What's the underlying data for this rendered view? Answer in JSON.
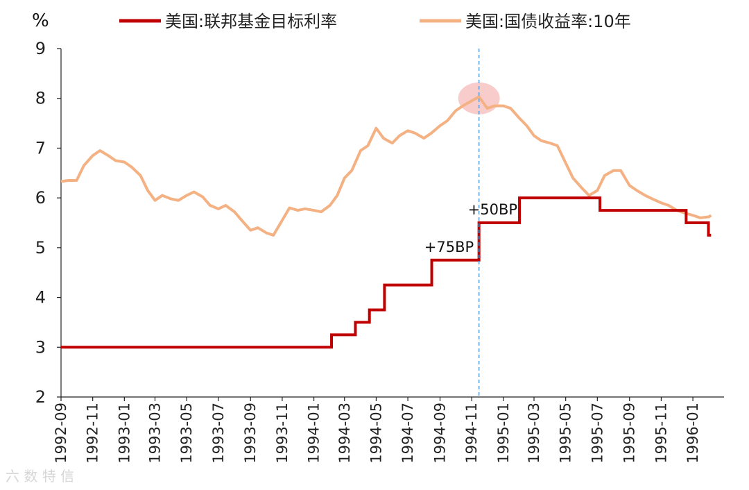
{
  "chart_data": {
    "type": "line",
    "title": "",
    "ylabel": "%",
    "xlabel": "",
    "ylim": [
      2,
      9
    ],
    "yticks": [
      "9",
      "8",
      "7",
      "6",
      "5",
      "4",
      "3",
      "2"
    ],
    "ytick_values": [
      9,
      8,
      7,
      6,
      5,
      4,
      3,
      2
    ],
    "xlim": [
      "1992-09",
      "1996-03"
    ],
    "xticks": [
      "1992-09",
      "1992-11",
      "1993-01",
      "1993-03",
      "1993-05",
      "1993-07",
      "1993-09",
      "1993-11",
      "1994-01",
      "1994-03",
      "1994-05",
      "1994-07",
      "1994-09",
      "1994-11",
      "1995-01",
      "1995-03",
      "1995-05",
      "1995-07",
      "1995-09",
      "1995-11",
      "1996-01"
    ],
    "legend": [
      "美国:联邦基金目标利率",
      "美国:国债收益率:10年"
    ],
    "series": [
      {
        "name": "美国:联邦基金目标利率",
        "color": "#C00000",
        "style": "step",
        "points": [
          [
            "1992-09-01",
            3.0
          ],
          [
            "1994-02-04",
            3.25
          ],
          [
            "1994-03-22",
            3.5
          ],
          [
            "1994-04-18",
            3.75
          ],
          [
            "1994-05-17",
            4.25
          ],
          [
            "1994-08-16",
            4.75
          ],
          [
            "1994-11-15",
            5.5
          ],
          [
            "1995-02-01",
            6.0
          ],
          [
            "1995-07-06",
            5.75
          ],
          [
            "1995-12-19",
            5.5
          ],
          [
            "1996-01-31",
            5.25
          ],
          [
            "1996-02-05",
            5.25
          ]
        ]
      },
      {
        "name": "美国:国债收益率:10年",
        "color": "#F4B183",
        "style": "line",
        "points": [
          [
            "1992-09-01",
            6.33
          ],
          [
            "1992-09-15",
            6.35
          ],
          [
            "1992-10-01",
            6.35
          ],
          [
            "1992-10-15",
            6.65
          ],
          [
            "1992-11-01",
            6.85
          ],
          [
            "1992-11-15",
            6.95
          ],
          [
            "1992-12-01",
            6.85
          ],
          [
            "1992-12-15",
            6.75
          ],
          [
            "1993-01-01",
            6.72
          ],
          [
            "1993-01-15",
            6.62
          ],
          [
            "1993-02-01",
            6.45
          ],
          [
            "1993-02-15",
            6.15
          ],
          [
            "1993-03-01",
            5.95
          ],
          [
            "1993-03-15",
            6.05
          ],
          [
            "1993-04-01",
            5.98
          ],
          [
            "1993-04-15",
            5.95
          ],
          [
            "1993-05-01",
            6.05
          ],
          [
            "1993-05-15",
            6.12
          ],
          [
            "1993-06-01",
            6.02
          ],
          [
            "1993-06-15",
            5.85
          ],
          [
            "1993-07-01",
            5.78
          ],
          [
            "1993-07-15",
            5.85
          ],
          [
            "1993-08-01",
            5.72
          ],
          [
            "1993-08-15",
            5.55
          ],
          [
            "1993-09-01",
            5.35
          ],
          [
            "1993-09-15",
            5.4
          ],
          [
            "1993-10-01",
            5.3
          ],
          [
            "1993-10-15",
            5.25
          ],
          [
            "1993-11-01",
            5.55
          ],
          [
            "1993-11-15",
            5.8
          ],
          [
            "1993-12-01",
            5.75
          ],
          [
            "1993-12-15",
            5.78
          ],
          [
            "1994-01-01",
            5.75
          ],
          [
            "1994-01-15",
            5.72
          ],
          [
            "1994-02-01",
            5.85
          ],
          [
            "1994-02-15",
            6.05
          ],
          [
            "1994-03-01",
            6.4
          ],
          [
            "1994-03-15",
            6.55
          ],
          [
            "1994-04-01",
            6.95
          ],
          [
            "1994-04-15",
            7.05
          ],
          [
            "1994-05-01",
            7.4
          ],
          [
            "1994-05-15",
            7.2
          ],
          [
            "1994-06-01",
            7.1
          ],
          [
            "1994-06-15",
            7.25
          ],
          [
            "1994-07-01",
            7.35
          ],
          [
            "1994-07-15",
            7.3
          ],
          [
            "1994-08-01",
            7.2
          ],
          [
            "1994-08-15",
            7.3
          ],
          [
            "1994-09-01",
            7.45
          ],
          [
            "1994-09-15",
            7.55
          ],
          [
            "1994-10-01",
            7.75
          ],
          [
            "1994-10-15",
            7.85
          ],
          [
            "1994-11-01",
            7.95
          ],
          [
            "1994-11-15",
            8.03
          ],
          [
            "1994-12-01",
            7.8
          ],
          [
            "1994-12-15",
            7.85
          ],
          [
            "1995-01-01",
            7.85
          ],
          [
            "1995-01-15",
            7.8
          ],
          [
            "1995-02-01",
            7.6
          ],
          [
            "1995-02-15",
            7.45
          ],
          [
            "1995-03-01",
            7.25
          ],
          [
            "1995-03-15",
            7.15
          ],
          [
            "1995-04-01",
            7.1
          ],
          [
            "1995-04-15",
            7.05
          ],
          [
            "1995-05-01",
            6.7
          ],
          [
            "1995-05-15",
            6.4
          ],
          [
            "1995-06-01",
            6.2
          ],
          [
            "1995-06-15",
            6.05
          ],
          [
            "1995-07-01",
            6.15
          ],
          [
            "1995-07-15",
            6.45
          ],
          [
            "1995-08-01",
            6.55
          ],
          [
            "1995-08-15",
            6.55
          ],
          [
            "1995-09-01",
            6.25
          ],
          [
            "1995-09-15",
            6.15
          ],
          [
            "1995-10-01",
            6.05
          ],
          [
            "1995-10-15",
            5.98
          ],
          [
            "1995-11-01",
            5.9
          ],
          [
            "1995-11-15",
            5.85
          ],
          [
            "1995-12-01",
            5.75
          ],
          [
            "1995-12-15",
            5.7
          ],
          [
            "1996-01-01",
            5.65
          ],
          [
            "1996-01-15",
            5.6
          ],
          [
            "1996-02-01",
            5.62
          ],
          [
            "1996-02-05",
            5.65
          ]
        ]
      }
    ],
    "vline": "1994-11-15",
    "highlight_point": {
      "x": "1994-11-15",
      "y": 8.0
    },
    "annotations": [
      {
        "text": "+75BP",
        "x": "1994-11-05",
        "y": 4.75
      },
      {
        "text": "+50BP",
        "x": "1995-01-28",
        "y": 5.5
      }
    ]
  },
  "watermark": "六 数 特 信"
}
